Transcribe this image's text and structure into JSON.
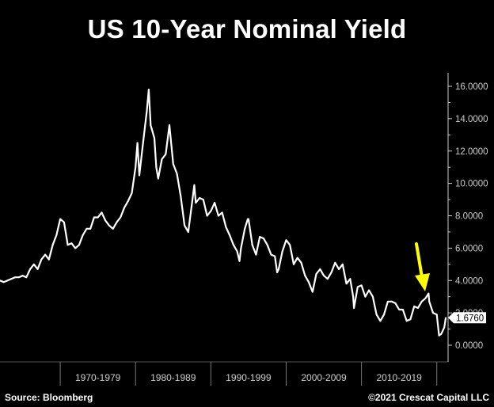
{
  "title": "US 10-Year Nominal Yield",
  "source": "Source: Bloomberg",
  "copyright": "©2021 Crescat Capital LLC",
  "colors": {
    "background": "#000000",
    "line": "#ffffff",
    "arrow": "#ffff00",
    "axis": "#cccccc"
  },
  "chart_data": {
    "type": "line",
    "title": "US 10-Year Nominal Yield",
    "xlabel": "",
    "ylabel": "",
    "xlim": [
      1962,
      2021.5
    ],
    "ylim": [
      -1.2,
      17.2
    ],
    "grid": false,
    "y_axis_position": "right",
    "y_ticks": [
      "0.0000",
      "2.0000",
      "4.0000",
      "6.0000",
      "8.0000",
      "10.0000",
      "12.0000",
      "14.0000",
      "16.0000"
    ],
    "x_category_bands": [
      "1970-1979",
      "1980-1989",
      "1990-1999",
      "2000-2009",
      "2010-2019"
    ],
    "last_value_label": "1.6760",
    "series": [
      {
        "x": [
          1962.0,
          1962.5,
          1963.0,
          1963.5,
          1964.0,
          1964.5,
          1965.0,
          1965.5,
          1966.0,
          1966.5,
          1967.0,
          1967.5,
          1968.0,
          1968.5,
          1969.0,
          1969.5,
          1970.0,
          1970.5,
          1971.0,
          1971.5,
          1972.0,
          1972.5,
          1973.0,
          1973.5,
          1974.0,
          1974.5,
          1975.0,
          1975.5,
          1976.0,
          1976.5,
          1977.0,
          1977.5,
          1978.0,
          1978.5,
          1979.0,
          1979.5,
          1980.0,
          1980.25,
          1980.5,
          1981.0,
          1981.5,
          1981.75,
          1982.0,
          1982.5,
          1982.75,
          1983.0,
          1983.5,
          1984.0,
          1984.5,
          1985.0,
          1985.5,
          1986.0,
          1986.5,
          1987.0,
          1987.5,
          1987.8,
          1988.0,
          1988.5,
          1989.0,
          1989.5,
          1990.0,
          1990.5,
          1991.0,
          1991.5,
          1992.0,
          1992.5,
          1993.0,
          1993.5,
          1993.8,
          1994.0,
          1994.5,
          1994.9,
          1995.0,
          1995.5,
          1996.0,
          1996.5,
          1997.0,
          1997.5,
          1998.0,
          1998.5,
          1998.8,
          1999.0,
          1999.5,
          2000.0,
          2000.5,
          2001.0,
          2001.5,
          2002.0,
          2002.5,
          2003.0,
          2003.5,
          2004.0,
          2004.5,
          2005.0,
          2005.5,
          2006.0,
          2006.5,
          2007.0,
          2007.5,
          2008.0,
          2008.5,
          2008.9,
          2009.0,
          2009.5,
          2010.0,
          2010.5,
          2011.0,
          2011.5,
          2012.0,
          2012.5,
          2013.0,
          2013.5,
          2014.0,
          2014.5,
          2015.0,
          2015.5,
          2016.0,
          2016.5,
          2017.0,
          2017.5,
          2018.0,
          2018.5,
          2018.9,
          2019.0,
          2019.5,
          2020.0,
          2020.3,
          2020.6,
          2021.0,
          2021.2
        ],
        "y": [
          4.0,
          3.9,
          4.0,
          4.1,
          4.2,
          4.2,
          4.3,
          4.2,
          4.7,
          5.0,
          4.7,
          5.3,
          5.6,
          5.3,
          6.2,
          6.8,
          7.8,
          7.6,
          6.2,
          6.3,
          6.0,
          6.2,
          6.8,
          7.2,
          7.2,
          7.9,
          7.9,
          8.2,
          7.7,
          7.4,
          7.2,
          7.6,
          7.9,
          8.5,
          8.9,
          9.4,
          11.0,
          12.5,
          10.5,
          12.5,
          14.5,
          15.8,
          13.6,
          12.8,
          11.0,
          10.3,
          11.5,
          11.8,
          13.6,
          11.2,
          10.6,
          9.2,
          7.4,
          7.0,
          8.8,
          9.9,
          8.8,
          9.1,
          9.0,
          8.0,
          8.3,
          8.8,
          8.0,
          8.2,
          7.3,
          6.8,
          6.2,
          5.8,
          5.2,
          6.0,
          7.2,
          7.8,
          7.8,
          6.2,
          5.6,
          6.7,
          6.6,
          6.2,
          5.6,
          5.5,
          4.5,
          4.7,
          5.8,
          6.5,
          6.2,
          5.0,
          5.4,
          5.1,
          4.3,
          3.9,
          3.3,
          4.4,
          4.7,
          4.3,
          4.1,
          4.5,
          5.1,
          4.7,
          5.0,
          3.8,
          4.1,
          3.0,
          2.3,
          3.6,
          3.7,
          3.0,
          3.4,
          3.0,
          1.9,
          1.5,
          1.9,
          2.7,
          2.7,
          2.6,
          2.2,
          2.2,
          1.5,
          1.6,
          2.4,
          2.3,
          2.7,
          2.9,
          3.2,
          2.7,
          2.0,
          1.9,
          0.6,
          0.7,
          1.1,
          1.7
        ]
      }
    ],
    "annotations": [
      {
        "type": "arrow",
        "color": "#ffff00",
        "direction": "down"
      }
    ]
  }
}
